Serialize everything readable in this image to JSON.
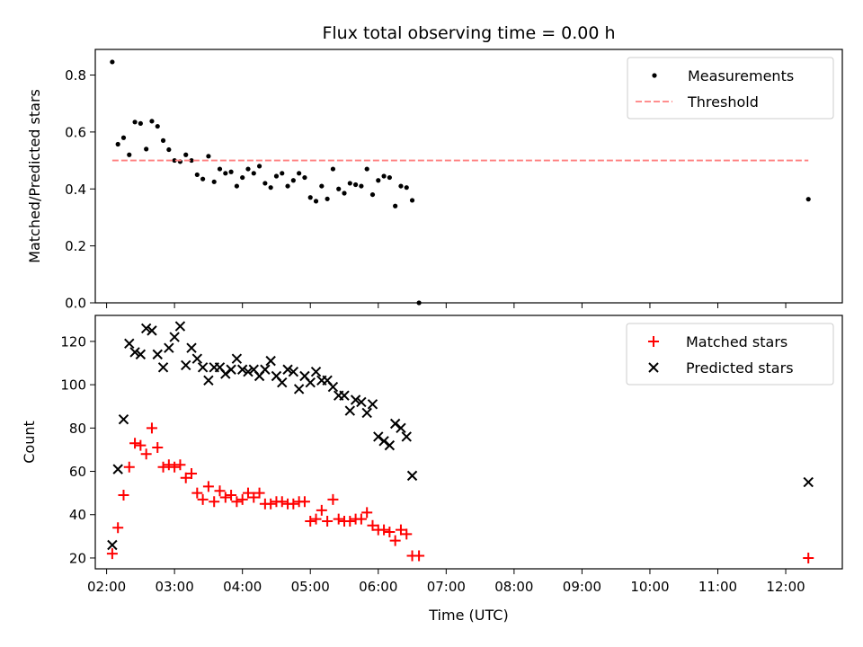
{
  "figure": {
    "title": "Flux total observing time = 0.00 h",
    "xlabel": "Time (UTC)"
  },
  "colors": {
    "measurements": "#000000",
    "threshold": "#ff7f7f",
    "matched": "#ff0000",
    "predicted": "#000000"
  },
  "chart_data": [
    {
      "type": "scatter",
      "panel": "top",
      "ylabel": "Matched/Predicted stars",
      "xlim": [
        "01:50",
        "12:50"
      ],
      "ylim": [
        0,
        0.89
      ],
      "yticks": [
        "0.0",
        "0.2",
        "0.4",
        "0.6",
        "0.8"
      ],
      "xticks": [
        "02:00",
        "03:00",
        "04:00",
        "05:00",
        "06:00",
        "07:00",
        "08:00",
        "09:00",
        "10:00",
        "11:00",
        "12:00"
      ],
      "legend": {
        "position": "top-right",
        "entries": [
          "Measurements",
          "Threshold"
        ]
      },
      "series": [
        {
          "name": "Measurements",
          "marker": "dot",
          "points": [
            [
              "02:05",
              0.846
            ],
            [
              "02:10",
              0.557
            ],
            [
              "02:15",
              0.58
            ],
            [
              "02:20",
              0.52
            ],
            [
              "02:25",
              0.635
            ],
            [
              "02:30",
              0.63
            ],
            [
              "02:35",
              0.54
            ],
            [
              "02:40",
              0.638
            ],
            [
              "02:45",
              0.62
            ],
            [
              "02:50",
              0.57
            ],
            [
              "02:55",
              0.538
            ],
            [
              "03:00",
              0.5
            ],
            [
              "03:05",
              0.496
            ],
            [
              "03:10",
              0.52
            ],
            [
              "03:15",
              0.5
            ],
            [
              "03:20",
              0.45
            ],
            [
              "03:25",
              0.435
            ],
            [
              "03:30",
              0.515
            ],
            [
              "03:35",
              0.425
            ],
            [
              "03:40",
              0.47
            ],
            [
              "03:45",
              0.455
            ],
            [
              "03:50",
              0.46
            ],
            [
              "03:55",
              0.41
            ],
            [
              "04:00",
              0.44
            ],
            [
              "04:05",
              0.47
            ],
            [
              "04:10",
              0.455
            ],
            [
              "04:15",
              0.48
            ],
            [
              "04:20",
              0.42
            ],
            [
              "04:25",
              0.405
            ],
            [
              "04:30",
              0.445
            ],
            [
              "04:35",
              0.455
            ],
            [
              "04:40",
              0.41
            ],
            [
              "04:45",
              0.43
            ],
            [
              "04:50",
              0.455
            ],
            [
              "04:55",
              0.44
            ],
            [
              "05:00",
              0.37
            ],
            [
              "05:05",
              0.357
            ],
            [
              "05:10",
              0.41
            ],
            [
              "05:15",
              0.365
            ],
            [
              "05:20",
              0.47
            ],
            [
              "05:25",
              0.4
            ],
            [
              "05:30",
              0.385
            ],
            [
              "05:35",
              0.42
            ],
            [
              "05:40",
              0.415
            ],
            [
              "05:45",
              0.41
            ],
            [
              "05:50",
              0.47
            ],
            [
              "05:55",
              0.38
            ],
            [
              "06:00",
              0.43
            ],
            [
              "06:05",
              0.445
            ],
            [
              "06:10",
              0.44
            ],
            [
              "06:15",
              0.34
            ],
            [
              "06:20",
              0.41
            ],
            [
              "06:25",
              0.405
            ],
            [
              "06:30",
              0.36
            ],
            [
              "06:36",
              0.0
            ],
            [
              "12:20",
              0.364
            ]
          ]
        },
        {
          "name": "Threshold",
          "style": "dashed",
          "points": [
            [
              "02:05",
              0.5
            ],
            [
              "12:20",
              0.5
            ]
          ]
        }
      ]
    },
    {
      "type": "scatter",
      "panel": "bottom",
      "ylabel": "Count",
      "xlim": [
        "01:50",
        "12:50"
      ],
      "ylim": [
        15,
        132
      ],
      "yticks": [
        "20",
        "40",
        "60",
        "80",
        "100",
        "120"
      ],
      "xticks": [
        "02:00",
        "03:00",
        "04:00",
        "05:00",
        "06:00",
        "07:00",
        "08:00",
        "09:00",
        "10:00",
        "11:00",
        "12:00"
      ],
      "legend": {
        "position": "top-right",
        "entries": [
          "Matched stars",
          "Predicted stars"
        ]
      },
      "series": [
        {
          "name": "Matched stars",
          "marker": "plus",
          "points": [
            [
              "02:05",
              22
            ],
            [
              "02:10",
              34
            ],
            [
              "02:15",
              49
            ],
            [
              "02:20",
              62
            ],
            [
              "02:25",
              73
            ],
            [
              "02:30",
              72
            ],
            [
              "02:35",
              68
            ],
            [
              "02:40",
              80
            ],
            [
              "02:45",
              71
            ],
            [
              "02:50",
              62
            ],
            [
              "02:55",
              63
            ],
            [
              "03:00",
              62
            ],
            [
              "03:05",
              63
            ],
            [
              "03:10",
              57
            ],
            [
              "03:15",
              59
            ],
            [
              "03:20",
              50
            ],
            [
              "03:25",
              47
            ],
            [
              "03:30",
              53
            ],
            [
              "03:35",
              46
            ],
            [
              "03:40",
              51
            ],
            [
              "03:45",
              48
            ],
            [
              "03:50",
              49
            ],
            [
              "03:55",
              46
            ],
            [
              "04:00",
              47
            ],
            [
              "04:05",
              50
            ],
            [
              "04:10",
              48
            ],
            [
              "04:15",
              50
            ],
            [
              "04:20",
              45
            ],
            [
              "04:25",
              45
            ],
            [
              "04:30",
              46
            ],
            [
              "04:35",
              46
            ],
            [
              "04:40",
              45
            ],
            [
              "04:45",
              45
            ],
            [
              "04:50",
              46
            ],
            [
              "04:55",
              46
            ],
            [
              "05:00",
              37
            ],
            [
              "05:05",
              38
            ],
            [
              "05:10",
              42
            ],
            [
              "05:15",
              37
            ],
            [
              "05:20",
              47
            ],
            [
              "05:25",
              38
            ],
            [
              "05:30",
              37
            ],
            [
              "05:35",
              37
            ],
            [
              "05:40",
              38
            ],
            [
              "05:45",
              38
            ],
            [
              "05:50",
              41
            ],
            [
              "05:55",
              35
            ],
            [
              "06:00",
              33
            ],
            [
              "06:05",
              33
            ],
            [
              "06:10",
              32
            ],
            [
              "06:15",
              28
            ],
            [
              "06:20",
              33
            ],
            [
              "06:25",
              31
            ],
            [
              "06:30",
              21
            ],
            [
              "06:36",
              21
            ],
            [
              "12:20",
              20
            ]
          ]
        },
        {
          "name": "Predicted stars",
          "marker": "x",
          "points": [
            [
              "02:05",
              26
            ],
            [
              "02:10",
              61
            ],
            [
              "02:15",
              84
            ],
            [
              "02:20",
              119
            ],
            [
              "02:25",
              115
            ],
            [
              "02:30",
              114
            ],
            [
              "02:35",
              126
            ],
            [
              "02:40",
              125
            ],
            [
              "02:45",
              114
            ],
            [
              "02:50",
              108
            ],
            [
              "02:55",
              117
            ],
            [
              "03:00",
              122
            ],
            [
              "03:05",
              127
            ],
            [
              "03:10",
              109
            ],
            [
              "03:15",
              117
            ],
            [
              "03:20",
              112
            ],
            [
              "03:25",
              108
            ],
            [
              "03:30",
              102
            ],
            [
              "03:35",
              108
            ],
            [
              "03:40",
              108
            ],
            [
              "03:45",
              105
            ],
            [
              "03:50",
              107
            ],
            [
              "03:55",
              112
            ],
            [
              "04:00",
              107
            ],
            [
              "04:05",
              106
            ],
            [
              "04:10",
              107
            ],
            [
              "04:15",
              104
            ],
            [
              "04:20",
              107
            ],
            [
              "04:25",
              111
            ],
            [
              "04:30",
              104
            ],
            [
              "04:35",
              101
            ],
            [
              "04:40",
              107
            ],
            [
              "04:45",
              106
            ],
            [
              "04:50",
              98
            ],
            [
              "04:55",
              104
            ],
            [
              "05:00",
              101
            ],
            [
              "05:05",
              106
            ],
            [
              "05:10",
              102
            ],
            [
              "05:15",
              102
            ],
            [
              "05:20",
              99
            ],
            [
              "05:25",
              95
            ],
            [
              "05:30",
              95
            ],
            [
              "05:35",
              88
            ],
            [
              "05:40",
              93
            ],
            [
              "05:45",
              92
            ],
            [
              "05:50",
              87
            ],
            [
              "05:55",
              91
            ],
            [
              "06:00",
              76
            ],
            [
              "06:05",
              74
            ],
            [
              "06:10",
              72
            ],
            [
              "06:15",
              82
            ],
            [
              "06:20",
              80
            ],
            [
              "06:25",
              76
            ],
            [
              "06:30",
              58
            ],
            [
              "12:20",
              55
            ]
          ]
        }
      ]
    }
  ]
}
